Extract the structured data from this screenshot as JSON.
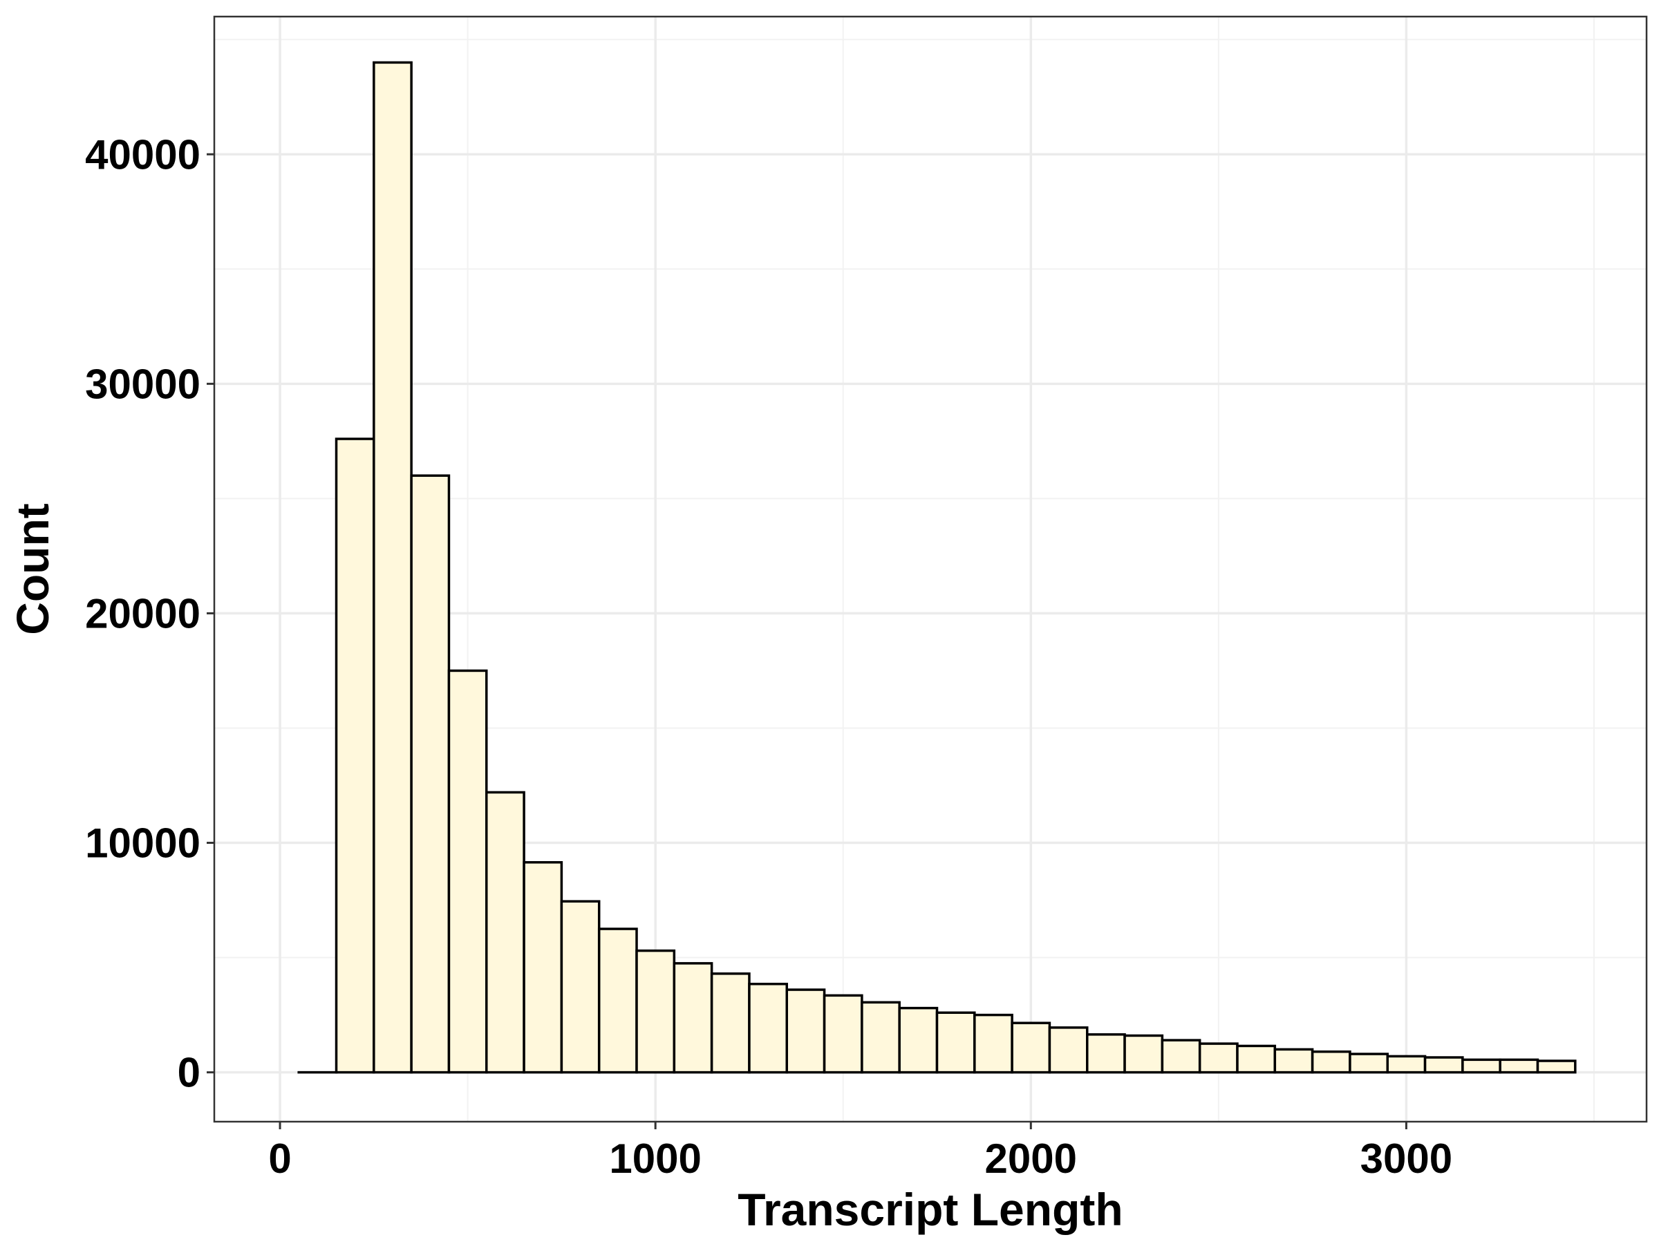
{
  "chart_data": {
    "type": "bar",
    "title": "",
    "xlabel": "Transcript Length",
    "ylabel": "Count",
    "xlim": [
      -175,
      3640
    ],
    "ylim": [
      -2150,
      46000
    ],
    "bin_width": 100,
    "x_ticks": [
      0,
      1000,
      2000,
      3000
    ],
    "y_ticks": [
      0,
      10000,
      20000,
      30000,
      40000
    ],
    "grid": true,
    "bar_fill": "#fff8dc",
    "bar_stroke": "#000000",
    "bins": [
      {
        "x0": 50,
        "x1": 150,
        "count": 0
      },
      {
        "x0": 150,
        "x1": 250,
        "count": 27600
      },
      {
        "x0": 250,
        "x1": 350,
        "count": 44000
      },
      {
        "x0": 350,
        "x1": 450,
        "count": 26000
      },
      {
        "x0": 450,
        "x1": 550,
        "count": 17500
      },
      {
        "x0": 550,
        "x1": 650,
        "count": 12200
      },
      {
        "x0": 650,
        "x1": 750,
        "count": 9150
      },
      {
        "x0": 750,
        "x1": 850,
        "count": 7450
      },
      {
        "x0": 850,
        "x1": 950,
        "count": 6250
      },
      {
        "x0": 950,
        "x1": 1050,
        "count": 5300
      },
      {
        "x0": 1050,
        "x1": 1150,
        "count": 4750
      },
      {
        "x0": 1150,
        "x1": 1250,
        "count": 4300
      },
      {
        "x0": 1250,
        "x1": 1350,
        "count": 3850
      },
      {
        "x0": 1350,
        "x1": 1450,
        "count": 3600
      },
      {
        "x0": 1450,
        "x1": 1550,
        "count": 3350
      },
      {
        "x0": 1550,
        "x1": 1650,
        "count": 3050
      },
      {
        "x0": 1650,
        "x1": 1750,
        "count": 2800
      },
      {
        "x0": 1750,
        "x1": 1850,
        "count": 2600
      },
      {
        "x0": 1850,
        "x1": 1950,
        "count": 2500
      },
      {
        "x0": 1950,
        "x1": 2050,
        "count": 2150
      },
      {
        "x0": 2050,
        "x1": 2150,
        "count": 1950
      },
      {
        "x0": 2150,
        "x1": 2250,
        "count": 1650
      },
      {
        "x0": 2250,
        "x1": 2350,
        "count": 1600
      },
      {
        "x0": 2350,
        "x1": 2450,
        "count": 1400
      },
      {
        "x0": 2450,
        "x1": 2550,
        "count": 1250
      },
      {
        "x0": 2550,
        "x1": 2650,
        "count": 1150
      },
      {
        "x0": 2650,
        "x1": 2750,
        "count": 1000
      },
      {
        "x0": 2750,
        "x1": 2850,
        "count": 900
      },
      {
        "x0": 2850,
        "x1": 2950,
        "count": 800
      },
      {
        "x0": 2950,
        "x1": 3050,
        "count": 700
      },
      {
        "x0": 3050,
        "x1": 3150,
        "count": 650
      },
      {
        "x0": 3150,
        "x1": 3250,
        "count": 550
      },
      {
        "x0": 3250,
        "x1": 3350,
        "count": 550
      },
      {
        "x0": 3350,
        "x1": 3450,
        "count": 500
      }
    ]
  }
}
